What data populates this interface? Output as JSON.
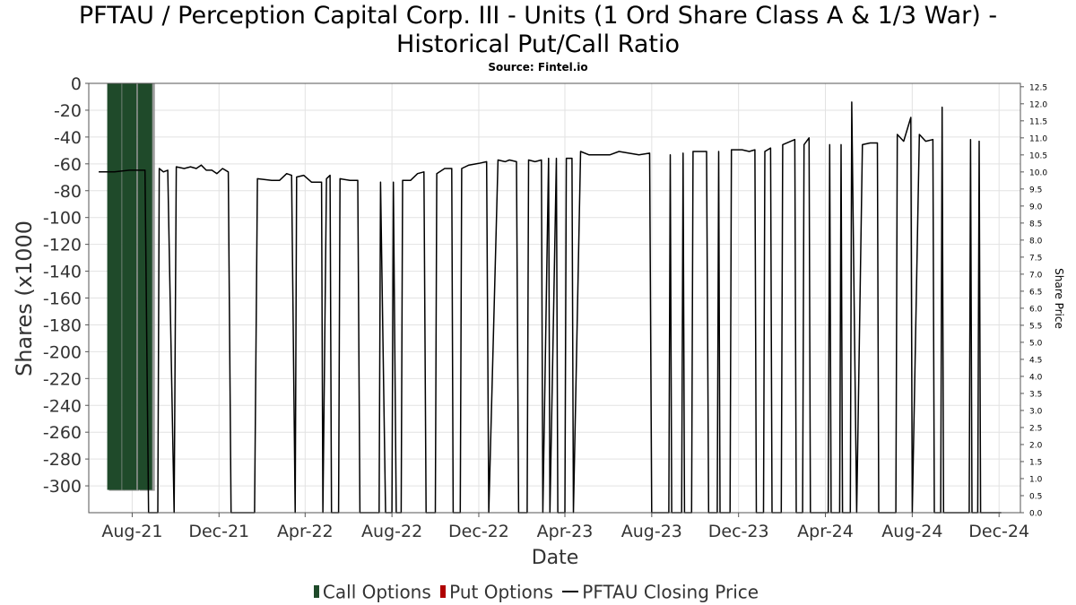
{
  "header": {
    "title_line1": "PFTAU / Perception Capital Corp. III - Units (1 Ord Share Class A & 1/3 War) -",
    "title_line2": "Historical Put/Call Ratio",
    "source": "Source: Fintel.io"
  },
  "legend": {
    "items": [
      {
        "label": "Call Options",
        "color": "#1f4a2a"
      },
      {
        "label": "Put Options",
        "color": "#b00000"
      },
      {
        "label": "PFTAU Closing Price",
        "color": "#000000"
      }
    ]
  },
  "chart_data": {
    "type": "bar",
    "xlabel": "Date",
    "ylabel": "Shares (x1000",
    "y2label": "Share Price",
    "ylim": [
      -320,
      0
    ],
    "y2lim": [
      0,
      12.6
    ],
    "y_ticks": [
      0,
      -20,
      -40,
      -60,
      -80,
      -100,
      -120,
      -140,
      -160,
      -180,
      -200,
      -220,
      -240,
      -260,
      -280,
      -300
    ],
    "y2_ticks": [
      "12.5",
      "12.0",
      "11.5",
      "11.0",
      "10.5",
      "10.0",
      "9.5",
      "9.0",
      "8.5",
      "8.0",
      "7.5",
      "7.0",
      "6.5",
      "6.0",
      "5.5",
      "5.0",
      "4.5",
      "4.0",
      "3.5",
      "3.0",
      "2.5",
      "2.0",
      "1.5",
      "1.0",
      "0.5",
      "0.0"
    ],
    "x_ticks": [
      "Aug-21",
      "Dec-21",
      "Apr-22",
      "Aug-22",
      "Dec-22",
      "Apr-23",
      "Aug-23",
      "Dec-23",
      "Apr-24",
      "Aug-24",
      "Dec-24"
    ],
    "grid": true,
    "series": [
      {
        "name": "Call Options",
        "axis": "left",
        "color": "#1f4a2a",
        "points": [
          [
            "2021-07-07",
            -303
          ],
          [
            "2021-07-28",
            -303
          ],
          [
            "2021-08-19",
            -303
          ]
        ]
      },
      {
        "name": "PFTAU Closing Price",
        "axis": "right",
        "type": "line",
        "color": "#000000",
        "points": [
          [
            "2021-06-15",
            10.0
          ],
          [
            "2021-07-07",
            10.0
          ],
          [
            "2021-07-28",
            10.05
          ],
          [
            "2021-08-19",
            10.05
          ],
          [
            "2021-08-24",
            0.0
          ],
          [
            "2021-09-06",
            0.0
          ],
          [
            "2021-09-08",
            10.1
          ],
          [
            "2021-09-14",
            10.0
          ],
          [
            "2021-09-20",
            10.05
          ],
          [
            "2021-09-29",
            0.0
          ],
          [
            "2021-10-02",
            10.15
          ],
          [
            "2021-10-13",
            10.1
          ],
          [
            "2021-10-22",
            10.15
          ],
          [
            "2021-10-30",
            10.1
          ],
          [
            "2021-11-06",
            10.2
          ],
          [
            "2021-11-13",
            10.05
          ],
          [
            "2021-11-21",
            10.05
          ],
          [
            "2021-11-28",
            9.95
          ],
          [
            "2021-12-06",
            10.1
          ],
          [
            "2021-12-14",
            10.0
          ],
          [
            "2021-12-18",
            0.0
          ],
          [
            "2022-01-20",
            0.0
          ],
          [
            "2022-01-24",
            9.8
          ],
          [
            "2022-02-13",
            9.75
          ],
          [
            "2022-02-24",
            9.75
          ],
          [
            "2022-03-06",
            9.95
          ],
          [
            "2022-03-13",
            9.9
          ],
          [
            "2022-03-18",
            0.0
          ],
          [
            "2022-03-20",
            9.85
          ],
          [
            "2022-03-30",
            9.9
          ],
          [
            "2022-04-10",
            9.7
          ],
          [
            "2022-04-24",
            9.7
          ],
          [
            "2022-04-26",
            0.0
          ],
          [
            "2022-05-01",
            9.8
          ],
          [
            "2022-05-06",
            9.9
          ],
          [
            "2022-05-08",
            0.0
          ],
          [
            "2022-05-18",
            0.0
          ],
          [
            "2022-05-20",
            9.8
          ],
          [
            "2022-06-03",
            9.75
          ],
          [
            "2022-06-14",
            9.75
          ],
          [
            "2022-06-17",
            0.0
          ],
          [
            "2022-07-14",
            0.0
          ],
          [
            "2022-07-16",
            9.7
          ],
          [
            "2022-07-23",
            0.0
          ],
          [
            "2022-08-01",
            0.0
          ],
          [
            "2022-08-03",
            9.7
          ],
          [
            "2022-08-07",
            0.0
          ],
          [
            "2022-08-14",
            0.0
          ],
          [
            "2022-08-16",
            9.75
          ],
          [
            "2022-08-27",
            9.75
          ],
          [
            "2022-09-06",
            9.95
          ],
          [
            "2022-09-15",
            10.0
          ],
          [
            "2022-09-18",
            0.0
          ],
          [
            "2022-10-01",
            0.0
          ],
          [
            "2022-10-03",
            9.95
          ],
          [
            "2022-10-14",
            10.1
          ],
          [
            "2022-10-24",
            10.1
          ],
          [
            "2022-10-26",
            0.0
          ],
          [
            "2022-11-05",
            0.0
          ],
          [
            "2022-11-07",
            10.1
          ],
          [
            "2022-11-17",
            10.2
          ],
          [
            "2022-12-01",
            10.25
          ],
          [
            "2022-12-12",
            10.3
          ],
          [
            "2022-12-15",
            0.0
          ],
          [
            "2022-12-28",
            10.35
          ],
          [
            "2023-01-07",
            10.3
          ],
          [
            "2023-01-13",
            10.35
          ],
          [
            "2023-01-23",
            10.3
          ],
          [
            "2023-01-26",
            0.0
          ],
          [
            "2023-02-07",
            0.0
          ],
          [
            "2023-02-09",
            10.35
          ],
          [
            "2023-02-18",
            10.3
          ],
          [
            "2023-02-27",
            10.35
          ],
          [
            "2023-03-01",
            0.0
          ],
          [
            "2023-03-09",
            10.4
          ],
          [
            "2023-03-11",
            0.0
          ],
          [
            "2023-03-20",
            10.4
          ],
          [
            "2023-03-22",
            0.0
          ],
          [
            "2023-04-01",
            0.0
          ],
          [
            "2023-04-03",
            10.4
          ],
          [
            "2023-04-11",
            10.4
          ],
          [
            "2023-04-13",
            0.0
          ],
          [
            "2023-04-23",
            10.6
          ],
          [
            "2023-05-05",
            10.5
          ],
          [
            "2023-05-19",
            10.5
          ],
          [
            "2023-06-03",
            10.5
          ],
          [
            "2023-06-16",
            10.6
          ],
          [
            "2023-06-30",
            10.55
          ],
          [
            "2023-07-14",
            10.5
          ],
          [
            "2023-07-29",
            10.55
          ],
          [
            "2023-08-01",
            0.0
          ],
          [
            "2023-08-25",
            0.0
          ],
          [
            "2023-08-27",
            10.5
          ],
          [
            "2023-08-29",
            0.0
          ],
          [
            "2023-09-12",
            0.0
          ],
          [
            "2023-09-14",
            10.55
          ],
          [
            "2023-09-16",
            0.0
          ],
          [
            "2023-09-26",
            0.0
          ],
          [
            "2023-09-28",
            10.6
          ],
          [
            "2023-10-17",
            10.6
          ],
          [
            "2023-10-20",
            0.0
          ],
          [
            "2023-11-01",
            0.0
          ],
          [
            "2023-11-03",
            10.6
          ],
          [
            "2023-11-05",
            0.0
          ],
          [
            "2023-11-19",
            0.0
          ],
          [
            "2023-11-21",
            10.65
          ],
          [
            "2023-12-06",
            10.65
          ],
          [
            "2023-12-16",
            10.6
          ],
          [
            "2023-12-24",
            10.65
          ],
          [
            "2023-12-26",
            0.0
          ],
          [
            "2024-01-05",
            0.0
          ],
          [
            "2024-01-07",
            10.6
          ],
          [
            "2024-01-15",
            10.7
          ],
          [
            "2024-01-17",
            0.0
          ],
          [
            "2024-01-30",
            0.0
          ],
          [
            "2024-02-01",
            10.8
          ],
          [
            "2024-02-18",
            10.95
          ],
          [
            "2024-02-20",
            0.0
          ],
          [
            "2024-02-29",
            0.0
          ],
          [
            "2024-03-02",
            10.8
          ],
          [
            "2024-03-09",
            11.0
          ],
          [
            "2024-03-11",
            0.0
          ],
          [
            "2024-04-05",
            0.0
          ],
          [
            "2024-04-07",
            10.8
          ],
          [
            "2024-04-09",
            0.0
          ],
          [
            "2024-04-21",
            0.0
          ],
          [
            "2024-04-23",
            10.8
          ],
          [
            "2024-04-25",
            0.0
          ],
          [
            "2024-05-06",
            0.0
          ],
          [
            "2024-05-08",
            12.05
          ],
          [
            "2024-05-15",
            0.0
          ],
          [
            "2024-05-23",
            10.8
          ],
          [
            "2024-06-03",
            10.85
          ],
          [
            "2024-06-13",
            10.85
          ],
          [
            "2024-06-15",
            0.0
          ],
          [
            "2024-07-09",
            0.0
          ],
          [
            "2024-07-11",
            11.1
          ],
          [
            "2024-07-20",
            10.9
          ],
          [
            "2024-07-30",
            11.6
          ],
          [
            "2024-08-01",
            0.0
          ],
          [
            "2024-08-11",
            11.1
          ],
          [
            "2024-08-20",
            10.9
          ],
          [
            "2024-08-30",
            10.95
          ],
          [
            "2024-09-01",
            0.0
          ],
          [
            "2024-09-10",
            0.0
          ],
          [
            "2024-09-12",
            11.9
          ],
          [
            "2024-09-14",
            0.0
          ],
          [
            "2024-10-20",
            0.0
          ],
          [
            "2024-10-22",
            10.95
          ],
          [
            "2024-10-24",
            0.0
          ],
          [
            "2024-11-01",
            0.0
          ],
          [
            "2024-11-03",
            10.9
          ],
          [
            "2024-11-05",
            0.0
          ],
          [
            "2024-12-04",
            0.0
          ]
        ]
      }
    ]
  }
}
